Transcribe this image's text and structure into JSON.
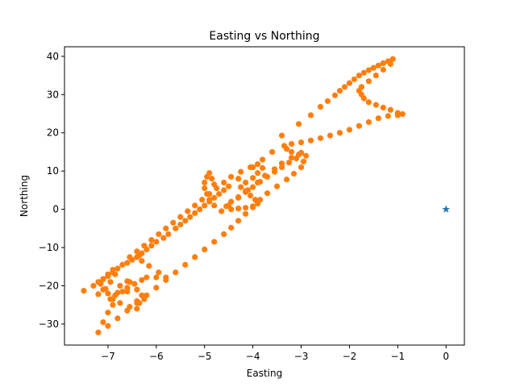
{
  "chart_data": {
    "type": "scatter",
    "title": "Easting vs Northing",
    "xlabel": "Easting",
    "ylabel": "Northing",
    "xlim": [
      -7.9,
      0.38
    ],
    "ylim": [
      -35.5,
      42.5
    ],
    "xticks": [
      -7,
      -6,
      -5,
      -4,
      -3,
      -2,
      -1,
      0
    ],
    "yticks": [
      -30,
      -20,
      -10,
      0,
      10,
      20,
      30,
      40
    ],
    "grid": false,
    "colors": {
      "track": "#ff7f0e",
      "origin": "#1f77b4"
    },
    "series": [
      {
        "marker": "circle",
        "points": [
          [
            -7.5,
            -21.3
          ],
          [
            -7.3,
            -20.0
          ],
          [
            -7.2,
            -19.0
          ],
          [
            -7.1,
            -18.3
          ],
          [
            -7.0,
            -17.5
          ],
          [
            -6.9,
            -16.5
          ],
          [
            -6.8,
            -15.5
          ],
          [
            -6.6,
            -14.0
          ],
          [
            -6.4,
            -12.5
          ],
          [
            -6.3,
            -11.5
          ],
          [
            -6.2,
            -10.5
          ],
          [
            -6.1,
            -9.5
          ],
          [
            -6.0,
            -8.5
          ],
          [
            -5.85,
            -7.5
          ],
          [
            -5.75,
            -6.5
          ],
          [
            -5.6,
            -5.0
          ],
          [
            -5.5,
            -4.0
          ],
          [
            -5.4,
            -3.0
          ],
          [
            -5.3,
            -2.0
          ],
          [
            -5.2,
            -1.0
          ],
          [
            -5.1,
            0.0
          ],
          [
            -5.0,
            1.0
          ],
          [
            -4.9,
            2.0
          ],
          [
            -4.8,
            3.0
          ],
          [
            -4.7,
            4.0
          ],
          [
            -4.6,
            5.0
          ],
          [
            -4.5,
            6.0
          ],
          [
            -4.3,
            8.0
          ],
          [
            -4.0,
            11.0
          ],
          [
            -3.8,
            13.0
          ],
          [
            -3.6,
            15.0
          ],
          [
            -3.4,
            19.3
          ],
          [
            -3.05,
            22.3
          ],
          [
            -2.8,
            24.6
          ],
          [
            -2.6,
            26.8
          ],
          [
            -2.45,
            28.3
          ],
          [
            -2.3,
            29.8
          ],
          [
            -2.2,
            31.0
          ],
          [
            -2.1,
            32.0
          ],
          [
            -2.0,
            33.0
          ],
          [
            -1.9,
            34.0
          ],
          [
            -1.8,
            35.0
          ],
          [
            -1.7,
            35.7
          ],
          [
            -1.6,
            36.4
          ],
          [
            -1.5,
            37.0
          ],
          [
            -1.4,
            37.6
          ],
          [
            -1.3,
            38.2
          ],
          [
            -1.2,
            38.7
          ],
          [
            -1.1,
            39.3
          ],
          [
            -1.15,
            38.0
          ],
          [
            -1.3,
            36.5
          ],
          [
            -1.45,
            35.0
          ],
          [
            -1.6,
            33.5
          ],
          [
            -1.75,
            32.0
          ],
          [
            -1.8,
            31.0
          ],
          [
            -1.75,
            30.0
          ],
          [
            -1.7,
            29.0
          ],
          [
            -1.6,
            28.0
          ],
          [
            -1.45,
            27.3
          ],
          [
            -1.3,
            26.6
          ],
          [
            -1.15,
            26.0
          ],
          [
            -1.0,
            25.2
          ],
          [
            -0.9,
            24.9
          ],
          [
            -1.0,
            24.6
          ],
          [
            -1.2,
            24.4
          ],
          [
            -1.4,
            23.8
          ],
          [
            -1.6,
            22.8
          ],
          [
            -1.8,
            21.8
          ],
          [
            -2.0,
            20.8
          ],
          [
            -2.2,
            20.0
          ],
          [
            -2.4,
            19.3
          ],
          [
            -2.6,
            18.6
          ],
          [
            -2.8,
            18.0
          ],
          [
            -3.0,
            17.5
          ],
          [
            -3.2,
            17.1
          ],
          [
            -3.35,
            16.6
          ],
          [
            -3.3,
            15.8
          ],
          [
            -3.2,
            15.0
          ],
          [
            -3.05,
            14.3
          ],
          [
            -3.1,
            13.3
          ],
          [
            -3.25,
            12.2
          ],
          [
            -3.4,
            11.0
          ],
          [
            -3.55,
            9.8
          ],
          [
            -3.7,
            8.5
          ],
          [
            -3.85,
            7.2
          ],
          [
            -4.0,
            5.8
          ],
          [
            -4.15,
            4.5
          ],
          [
            -4.3,
            3.2
          ],
          [
            -4.45,
            2.0
          ],
          [
            -4.55,
            0.8
          ],
          [
            -4.45,
            0.0
          ],
          [
            -4.3,
            0.2
          ],
          [
            -4.15,
            0.4
          ],
          [
            -4.0,
            0.8
          ],
          [
            -3.9,
            1.5
          ],
          [
            -3.95,
            2.5
          ],
          [
            -4.05,
            3.6
          ],
          [
            -4.15,
            4.8
          ],
          [
            -4.25,
            5.8
          ],
          [
            -4.15,
            7.0
          ],
          [
            -4.0,
            8.2
          ],
          [
            -3.9,
            9.5
          ],
          [
            -3.8,
            10.8
          ],
          [
            -3.9,
            11.8
          ],
          [
            -4.05,
            11.0
          ],
          [
            -4.25,
            9.8
          ],
          [
            -4.45,
            8.5
          ],
          [
            -4.6,
            7.0
          ],
          [
            -4.75,
            5.5
          ],
          [
            -4.9,
            4.0
          ],
          [
            -5.05,
            2.5
          ],
          [
            -5.2,
            1.0
          ],
          [
            -5.35,
            -0.5
          ],
          [
            -5.5,
            -2.0
          ],
          [
            -5.65,
            -3.5
          ],
          [
            -5.8,
            -5.0
          ],
          [
            -5.95,
            -6.5
          ],
          [
            -6.1,
            -8.0
          ],
          [
            -6.25,
            -9.5
          ],
          [
            -6.4,
            -11.0
          ],
          [
            -6.55,
            -12.5
          ],
          [
            -6.7,
            -14.5
          ],
          [
            -6.85,
            -17.0
          ],
          [
            -6.95,
            -19.0
          ],
          [
            -7.1,
            -21.0
          ],
          [
            -7.2,
            -22.2
          ],
          [
            -7.0,
            -22.0
          ],
          [
            -6.8,
            -21.8
          ],
          [
            -6.6,
            -21.5
          ],
          [
            -6.4,
            -21.0
          ],
          [
            -6.3,
            -22.5
          ],
          [
            -6.35,
            -24.5
          ],
          [
            -6.4,
            -26.0
          ],
          [
            -6.55,
            -25.5
          ],
          [
            -6.75,
            -24.5
          ],
          [
            -6.9,
            -23.5
          ],
          [
            -6.85,
            -22.5
          ],
          [
            -6.7,
            -21.5
          ],
          [
            -6.6,
            -20.5
          ],
          [
            -6.45,
            -19.5
          ],
          [
            -6.3,
            -18.5
          ],
          [
            -6.2,
            -17.8
          ],
          [
            -6.0,
            -17.8
          ],
          [
            -5.8,
            -17.8
          ],
          [
            -5.95,
            -16.5
          ],
          [
            -6.15,
            -14.8
          ],
          [
            -6.3,
            -13.5
          ],
          [
            -6.35,
            -12.0
          ],
          [
            -6.5,
            -13.2
          ],
          [
            -6.7,
            -14.5
          ],
          [
            -6.9,
            -15.8
          ],
          [
            -7.0,
            -17.0
          ],
          [
            -7.1,
            -18.2
          ],
          [
            -7.15,
            -19.5
          ],
          [
            -7.05,
            -20.8
          ],
          [
            -7.0,
            -22.0
          ],
          [
            -6.95,
            -23.5
          ],
          [
            -6.9,
            -25.0
          ],
          [
            -7.0,
            -27.0
          ],
          [
            -7.1,
            -29.5
          ],
          [
            -7.2,
            -32.2
          ],
          [
            -7.0,
            -30.5
          ],
          [
            -6.8,
            -28.5
          ],
          [
            -6.6,
            -26.5
          ],
          [
            -6.4,
            -24.5
          ],
          [
            -6.2,
            -22.5
          ],
          [
            -6.0,
            -20.5
          ],
          [
            -5.8,
            -18.5
          ],
          [
            -5.6,
            -16.5
          ],
          [
            -5.4,
            -14.5
          ],
          [
            -5.2,
            -12.5
          ],
          [
            -5.0,
            -10.5
          ],
          [
            -4.8,
            -8.5
          ],
          [
            -4.6,
            -6.5
          ],
          [
            -4.45,
            -4.8
          ],
          [
            -4.3,
            -3.0
          ],
          [
            -4.15,
            -1.2
          ],
          [
            -4.0,
            0.5
          ],
          [
            -3.85,
            2.5
          ],
          [
            -3.7,
            4.2
          ],
          [
            -3.5,
            6.0
          ],
          [
            -3.3,
            7.8
          ],
          [
            -3.15,
            9.3
          ],
          [
            -3.0,
            11.0
          ],
          [
            -2.95,
            12.5
          ],
          [
            -2.9,
            14.0
          ],
          [
            -3.0,
            14.8
          ],
          [
            -3.2,
            13.5
          ],
          [
            -3.4,
            12.0
          ],
          [
            -3.55,
            10.5
          ],
          [
            -3.75,
            8.8
          ],
          [
            -3.9,
            7.0
          ],
          [
            -4.1,
            5.0
          ],
          [
            -4.3,
            3.0
          ],
          [
            -4.5,
            1.0
          ],
          [
            -4.65,
            -0.5
          ],
          [
            -4.8,
            1.0
          ],
          [
            -4.9,
            2.5
          ],
          [
            -4.95,
            4.0
          ],
          [
            -5.0,
            5.5
          ],
          [
            -5.0,
            7.0
          ],
          [
            -4.95,
            8.5
          ],
          [
            -4.9,
            9.5
          ],
          [
            -4.85,
            8.0
          ],
          [
            -4.8,
            6.5
          ],
          [
            -6.55,
            -19.0
          ],
          [
            -6.75,
            -20.0
          ],
          [
            -6.6,
            -18.8
          ],
          [
            -6.4,
            -24.0
          ],
          [
            -6.25,
            -23.5
          ]
        ]
      },
      {
        "marker": "star",
        "points": [
          [
            0.0,
            0.0
          ]
        ]
      }
    ]
  }
}
